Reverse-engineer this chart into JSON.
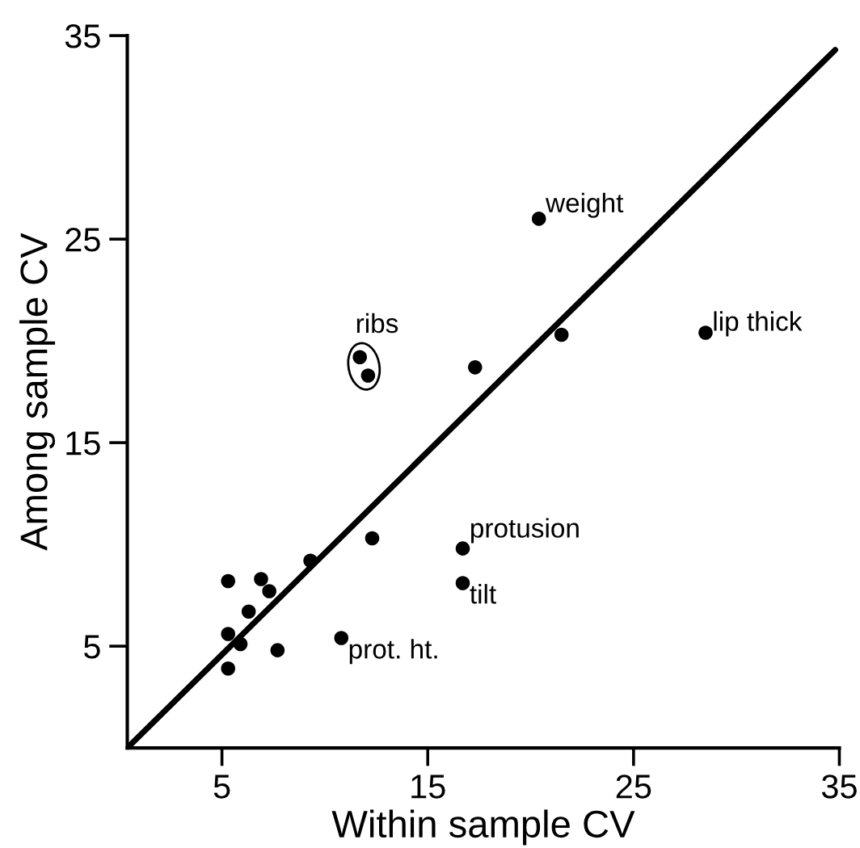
{
  "chart_data": {
    "type": "scatter",
    "xlabel": "Within sample CV",
    "ylabel": "Among sample CV",
    "xlim": [
      0.4,
      35
    ],
    "ylim": [
      0,
      35
    ],
    "xticks": [
      5,
      15,
      25,
      35
    ],
    "yticks": [
      5,
      15,
      25,
      35
    ],
    "grid": false,
    "legend": false,
    "series": [
      {
        "marker": "circle",
        "color": "#000000",
        "x": [
          20.4,
          28.5,
          21.5,
          17.3,
          11.7,
          12.1,
          16.7,
          16.7,
          12.3,
          9.3,
          5.3,
          6.9,
          7.3,
          6.3,
          5.3,
          5.9,
          7.7,
          5.3,
          10.8
        ],
        "values": [
          26.0,
          20.4,
          20.3,
          18.7,
          19.2,
          18.3,
          9.8,
          8.1,
          10.3,
          9.2,
          8.2,
          8.3,
          7.7,
          6.7,
          5.6,
          5.1,
          4.8,
          3.9,
          5.4
        ]
      },
      {
        "type": "line",
        "marker": "none",
        "color": "#000000",
        "x": [
          0.4,
          34.8
        ],
        "values": [
          0,
          34.3
        ]
      }
    ],
    "annotations": [
      {
        "text": "weight",
        "x": 20.4,
        "y": 26.0
      },
      {
        "text": "lip thick",
        "x": 28.5,
        "y": 20.4
      },
      {
        "text": "ribs",
        "x": 11.7,
        "y": 19.2
      },
      {
        "text": "protusion",
        "x": 16.7,
        "y": 9.8
      },
      {
        "text": "tilt",
        "x": 16.7,
        "y": 8.1
      },
      {
        "text": "prot. ht.",
        "x": 10.8,
        "y": 5.4
      }
    ]
  }
}
